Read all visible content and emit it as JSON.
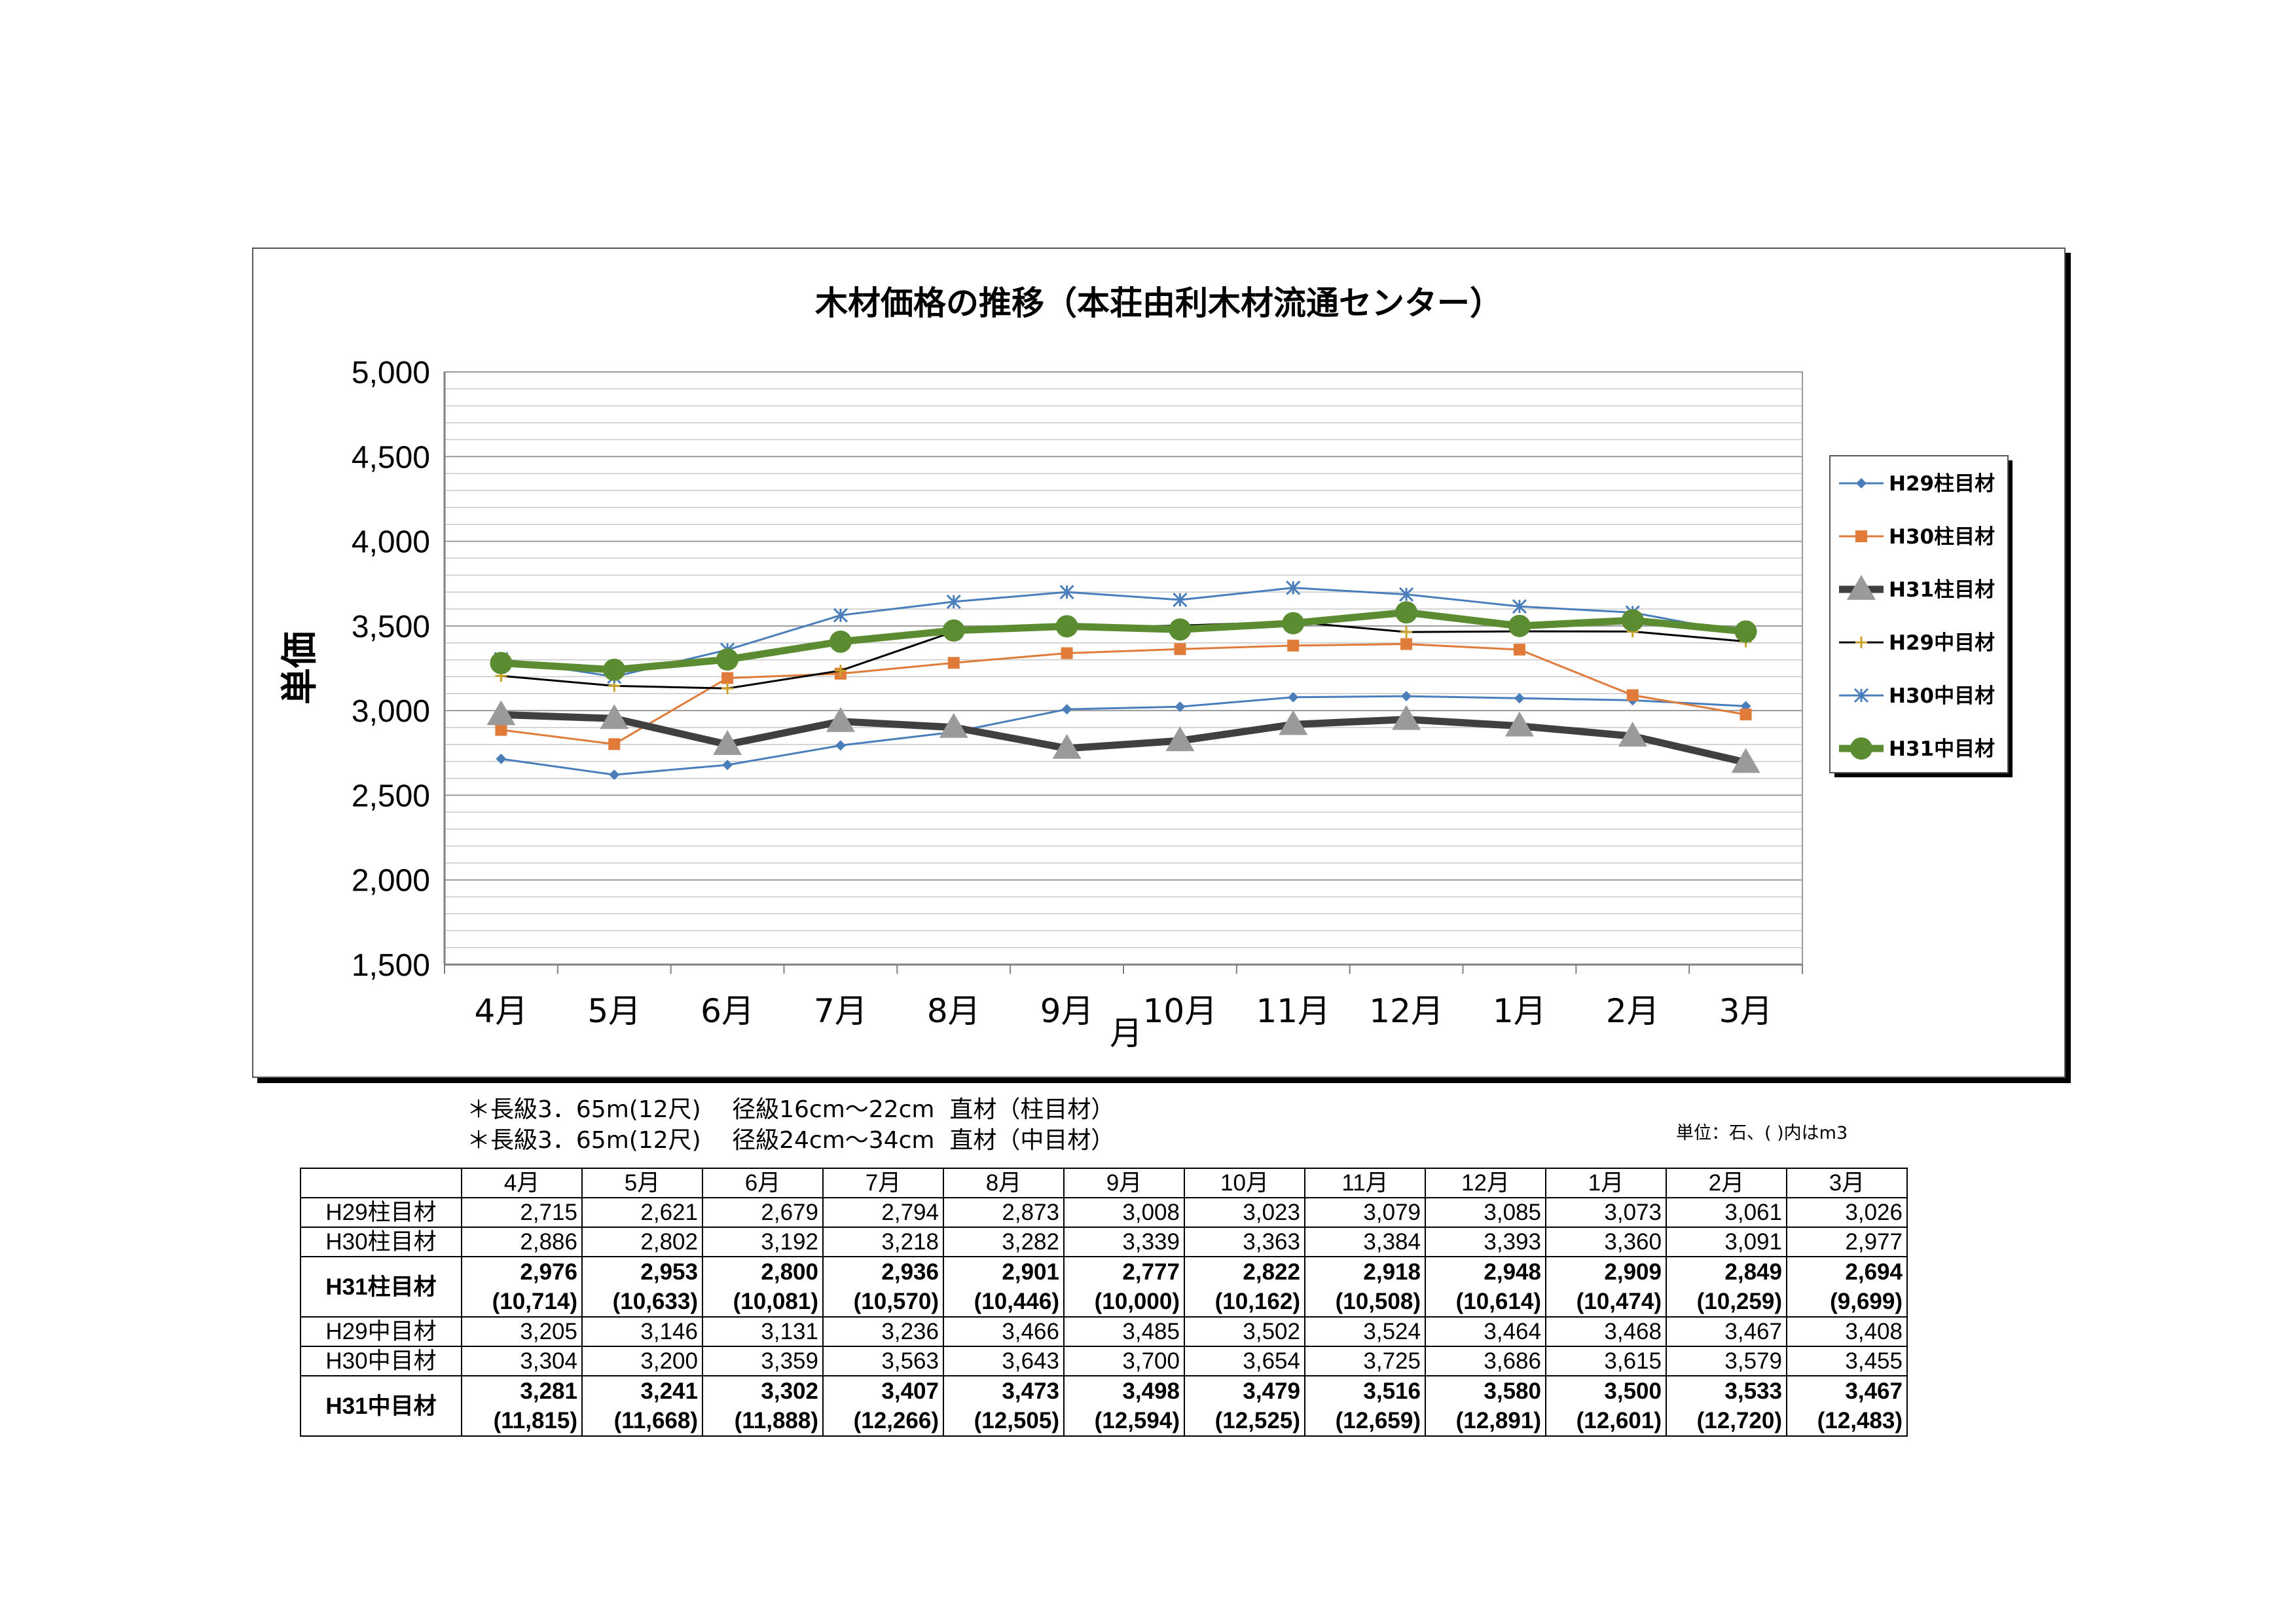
{
  "chart_data": {
    "type": "line",
    "title": "木材価格の推移（本荘由利木材流通センター）",
    "xlabel": "月",
    "ylabel": "単価",
    "ylim": [
      1500,
      5000
    ],
    "yticks": [
      "1,500",
      "2,000",
      "2,500",
      "3,000",
      "3,500",
      "4,000",
      "4,500",
      "5,000"
    ],
    "ytick_values": [
      1500,
      2000,
      2500,
      3000,
      3500,
      4000,
      4500,
      5000
    ],
    "categories": [
      "4月",
      "5月",
      "6月",
      "7月",
      "8月",
      "9月",
      "10月",
      "11月",
      "12月",
      "1月",
      "2月",
      "3月"
    ],
    "grid": true,
    "legend_position": "right",
    "series": [
      {
        "name": "H29柱目材",
        "color": "#4a7ebb",
        "marker": "diamond",
        "width": 3,
        "values": [
          2715,
          2621,
          2679,
          2794,
          2873,
          3008,
          3023,
          3079,
          3085,
          3073,
          3061,
          3026
        ]
      },
      {
        "name": "H30柱目材",
        "color": "#e07b39",
        "marker": "square",
        "width": 3,
        "values": [
          2886,
          2802,
          3192,
          3218,
          3282,
          3339,
          3363,
          3384,
          3393,
          3360,
          3091,
          2977
        ]
      },
      {
        "name": "H31柱目材",
        "color": "#404040",
        "marker": "triangle",
        "width": 11,
        "values": [
          2976,
          2953,
          2800,
          2936,
          2901,
          2777,
          2822,
          2918,
          2948,
          2909,
          2849,
          2694
        ]
      },
      {
        "name": "H29中目材",
        "color": "#000000",
        "marker": "plus",
        "width": 3,
        "values": [
          3205,
          3146,
          3131,
          3236,
          3466,
          3485,
          3502,
          3524,
          3464,
          3468,
          3467,
          3408
        ]
      },
      {
        "name": "H30中目材",
        "color": "#4a7ebb",
        "marker": "star",
        "width": 3,
        "values": [
          3304,
          3200,
          3359,
          3563,
          3643,
          3700,
          3654,
          3725,
          3686,
          3615,
          3579,
          3455
        ]
      },
      {
        "name": "H31中目材",
        "color": "#5b8c32",
        "marker": "circle",
        "width": 11,
        "values": [
          3281,
          3241,
          3302,
          3407,
          3473,
          3498,
          3479,
          3516,
          3580,
          3500,
          3533,
          3467
        ]
      }
    ]
  },
  "notes": {
    "line1": "＊長級3．65m(12尺)　 径級16cm～22cm  直材（柱目材）",
    "line2": "＊長級3．65m(12尺)　 径級24cm～34cm  直材（中目材）",
    "unit": "単位：石、(  )内はm3"
  },
  "table": {
    "headers": [
      "4月",
      "5月",
      "6月",
      "7月",
      "8月",
      "9月",
      "10月",
      "11月",
      "12月",
      "1月",
      "2月",
      "3月"
    ],
    "rows": [
      {
        "label": "H29柱目材",
        "bold": false,
        "values": [
          "2,715",
          "2,621",
          "2,679",
          "2,794",
          "2,873",
          "3,008",
          "3,023",
          "3,079",
          "3,085",
          "3,073",
          "3,061",
          "3,026"
        ]
      },
      {
        "label": "H30柱目材",
        "bold": false,
        "values": [
          "2,886",
          "2,802",
          "3,192",
          "3,218",
          "3,282",
          "3,339",
          "3,363",
          "3,384",
          "3,393",
          "3,360",
          "3,091",
          "2,977"
        ]
      },
      {
        "label": "H31柱目材",
        "bold": true,
        "values": [
          "2,976",
          "2,953",
          "2,800",
          "2,936",
          "2,901",
          "2,777",
          "2,822",
          "2,918",
          "2,948",
          "2,909",
          "2,849",
          "2,694"
        ],
        "values_m3": [
          "(10,714)",
          "(10,633)",
          "(10,081)",
          "(10,570)",
          "(10,446)",
          "(10,000)",
          "(10,162)",
          "(10,508)",
          "(10,614)",
          "(10,474)",
          "(10,259)",
          "(9,699)"
        ]
      },
      {
        "label": "H29中目材",
        "bold": false,
        "values": [
          "3,205",
          "3,146",
          "3,131",
          "3,236",
          "3,466",
          "3,485",
          "3,502",
          "3,524",
          "3,464",
          "3,468",
          "3,467",
          "3,408"
        ]
      },
      {
        "label": "H30中目材",
        "bold": false,
        "values": [
          "3,304",
          "3,200",
          "3,359",
          "3,563",
          "3,643",
          "3,700",
          "3,654",
          "3,725",
          "3,686",
          "3,615",
          "3,579",
          "3,455"
        ]
      },
      {
        "label": "H31中目材",
        "bold": true,
        "values": [
          "3,281",
          "3,241",
          "3,302",
          "3,407",
          "3,473",
          "3,498",
          "3,479",
          "3,516",
          "3,580",
          "3,500",
          "3,533",
          "3,467"
        ],
        "values_m3": [
          "(11,815)",
          "(11,668)",
          "(11,888)",
          "(12,266)",
          "(12,505)",
          "(12,594)",
          "(12,525)",
          "(12,659)",
          "(12,891)",
          "(12,601)",
          "(12,720)",
          "(12,483)"
        ]
      }
    ]
  }
}
